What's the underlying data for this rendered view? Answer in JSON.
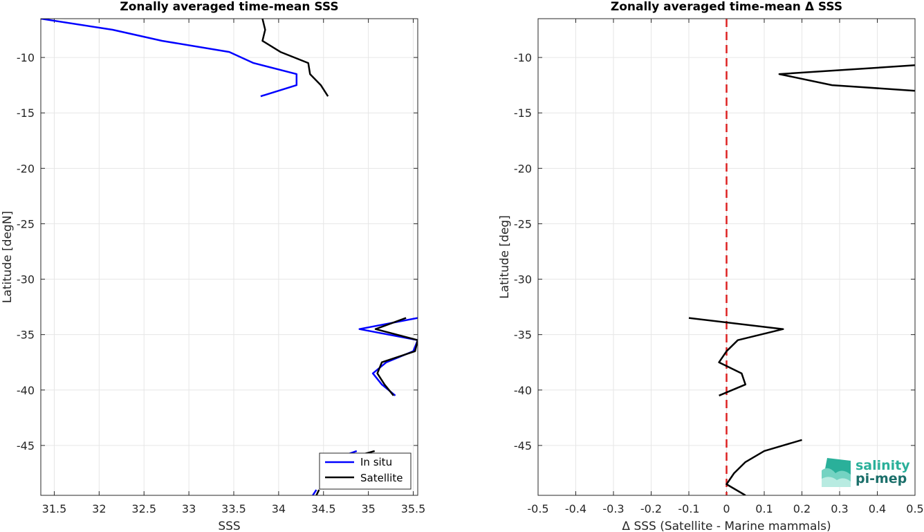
{
  "chart_data": [
    {
      "type": "line",
      "title": "Zonally averaged time-mean SSS",
      "xlabel": "SSS",
      "ylabel": "Latitude [degN]",
      "xlim": [
        31.35,
        35.55
      ],
      "ylim": [
        -49.5,
        -6.5
      ],
      "xticks": [
        31.5,
        32,
        32.5,
        33,
        33.5,
        34,
        34.5,
        35,
        35.5
      ],
      "yticks": [
        -10,
        -15,
        -20,
        -25,
        -30,
        -35,
        -40,
        -45
      ],
      "grid": true,
      "legend": "bottom-right",
      "series": [
        {
          "name": "In situ",
          "color": "#0000ff",
          "segments": [
            [
              [
                31.35,
                -6.5
              ],
              [
                32.15,
                -7.5
              ],
              [
                32.7,
                -8.5
              ],
              [
                33.45,
                -9.5
              ],
              [
                33.72,
                -10.5
              ],
              [
                34.2,
                -11.5
              ],
              [
                34.2,
                -12.5
              ],
              [
                33.8,
                -13.5
              ]
            ],
            [
              [
                35.55,
                -33.5
              ],
              [
                34.9,
                -34.5
              ],
              [
                35.55,
                -35.5
              ],
              [
                35.5,
                -36.5
              ],
              [
                35.2,
                -37.5
              ],
              [
                35.05,
                -38.5
              ],
              [
                35.15,
                -39.5
              ],
              [
                35.3,
                -40.5
              ]
            ],
            [
              [
                34.87,
                -45.5
              ],
              [
                34.52,
                -46.5
              ]
            ],
            [
              [
                34.42,
                -49
              ],
              [
                34.38,
                -49.5
              ]
            ]
          ]
        },
        {
          "name": "Satellite",
          "color": "#000000",
          "segments": [
            [
              [
                33.82,
                -6.5
              ],
              [
                33.85,
                -7.5
              ],
              [
                33.82,
                -8.5
              ],
              [
                34.02,
                -9.5
              ],
              [
                34.33,
                -10.5
              ],
              [
                34.35,
                -11.5
              ],
              [
                34.47,
                -12.5
              ],
              [
                34.55,
                -13.5
              ]
            ],
            [
              [
                35.42,
                -33.5
              ],
              [
                35.08,
                -34.5
              ],
              [
                35.55,
                -35.5
              ],
              [
                35.52,
                -36.5
              ],
              [
                35.15,
                -37.5
              ],
              [
                35.1,
                -38.5
              ],
              [
                35.18,
                -39.5
              ],
              [
                35.28,
                -40.5
              ]
            ],
            [
              [
                35.07,
                -45.5
              ],
              [
                34.62,
                -46.5
              ]
            ],
            [
              [
                34.45,
                -49
              ],
              [
                34.42,
                -49.5
              ]
            ]
          ]
        }
      ]
    },
    {
      "type": "line",
      "title": "Zonally averaged time-mean Δ SSS",
      "xlabel": "Δ SSS (Satellite - Marine mammals)",
      "ylabel": "Latitude [deg]",
      "xlim": [
        -0.5,
        0.5
      ],
      "ylim": [
        -49.5,
        -6.5
      ],
      "xticks": [
        -0.5,
        -0.4,
        -0.3,
        -0.2,
        -0.1,
        0,
        0.1,
        0.2,
        0.3,
        0.4,
        0.5
      ],
      "yticks": [
        -10,
        -15,
        -20,
        -25,
        -30,
        -35,
        -40,
        -45
      ],
      "grid": true,
      "zero_line_color": "#dd2222",
      "series": [
        {
          "color": "#000000",
          "segments": [
            [
              [
                0.5,
                -10.7
              ],
              [
                0.14,
                -11.5
              ],
              [
                0.28,
                -12.5
              ],
              [
                0.5,
                -13
              ]
            ],
            [
              [
                -0.1,
                -33.5
              ],
              [
                0.15,
                -34.5
              ],
              [
                0.03,
                -35.5
              ],
              [
                0.0,
                -36.5
              ],
              [
                -0.02,
                -37.5
              ],
              [
                0.04,
                -38.5
              ],
              [
                0.05,
                -39.5
              ],
              [
                -0.02,
                -40.5
              ]
            ],
            [
              [
                0.2,
                -44.5
              ],
              [
                0.1,
                -45.5
              ],
              [
                0.05,
                -46.5
              ],
              [
                0.02,
                -47.5
              ],
              [
                0.0,
                -48.5
              ],
              [
                0.05,
                -49.5
              ]
            ]
          ]
        }
      ]
    }
  ],
  "logo": {
    "line1": "salinity",
    "line2": "pi-mep"
  }
}
